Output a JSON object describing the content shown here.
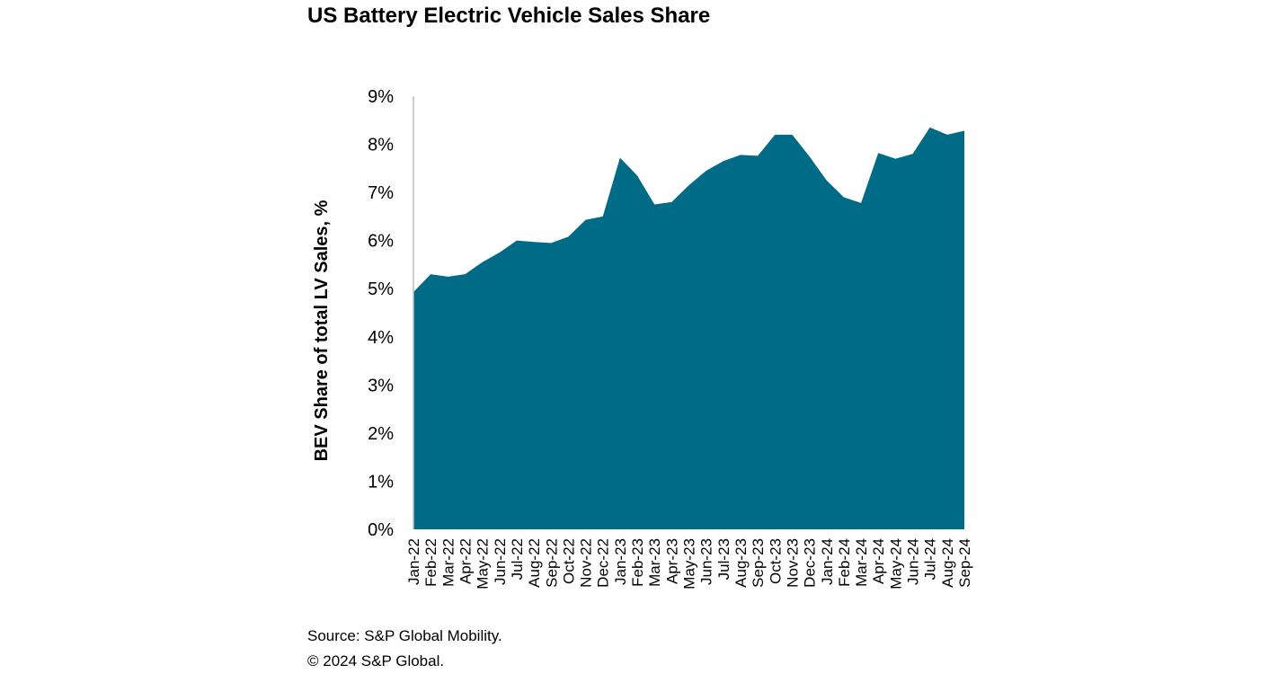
{
  "chart_data": {
    "type": "area",
    "title": "US Battery Electric Vehicle Sales Share",
    "xlabel": "",
    "ylabel": "BEV Share of total LV Sales, %",
    "ylim": [
      0,
      9
    ],
    "yticks": [
      "0%",
      "1%",
      "2%",
      "3%",
      "4%",
      "5%",
      "6%",
      "7%",
      "8%",
      "9%"
    ],
    "grid": false,
    "color": "#006B86",
    "categories": [
      "Jan-22",
      "Feb-22",
      "Mar-22",
      "Apr-22",
      "May-22",
      "Jun-22",
      "Jul-22",
      "Aug-22",
      "Sep-22",
      "Oct-22",
      "Nov-22",
      "Dec-22",
      "Jan-23",
      "Feb-23",
      "Mar-23",
      "Apr-23",
      "May-23",
      "Jun-23",
      "Jul-23",
      "Aug-23",
      "Sep-23",
      "Oct-23",
      "Nov-23",
      "Dec-23",
      "Jan-24",
      "Feb-24",
      "Mar-24",
      "Apr-24",
      "May-24",
      "Jun-24",
      "Jul-24",
      "Aug-24",
      "Sep-24"
    ],
    "values": [
      4.93,
      5.3,
      5.25,
      5.3,
      5.55,
      5.75,
      6.0,
      5.97,
      5.95,
      6.08,
      6.43,
      6.5,
      7.72,
      7.35,
      6.75,
      6.8,
      7.15,
      7.45,
      7.65,
      7.78,
      7.76,
      8.2,
      8.2,
      7.75,
      7.25,
      6.9,
      6.78,
      7.82,
      7.7,
      7.8,
      8.35,
      8.2,
      8.28
    ]
  },
  "footer": {
    "source": "Source: S&P Global Mobility.",
    "copyright": "© 2024 S&P Global."
  }
}
